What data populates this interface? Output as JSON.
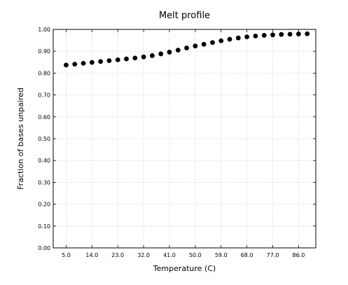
{
  "chart_data": {
    "type": "scatter",
    "title": "Melt profile",
    "xlabel": "Temperature (C)",
    "ylabel": "Fraction of bases unpaired",
    "xlim": [
      0.5,
      92.0
    ],
    "ylim": [
      0.0,
      1.0
    ],
    "x_ticks": [
      "5.0",
      "14.0",
      "23.0",
      "32.0",
      "41.0",
      "50.0",
      "59.0",
      "68.0",
      "77.0",
      "86.0"
    ],
    "y_ticks": [
      "0.00",
      "0.10",
      "0.20",
      "0.30",
      "0.40",
      "0.50",
      "0.60",
      "0.70",
      "0.80",
      "0.90",
      "1.00"
    ],
    "grid": true,
    "series": [
      {
        "color": "#000000",
        "x": [
          5,
          8,
          11,
          14,
          17,
          20,
          23,
          26,
          29,
          32,
          35,
          38,
          41,
          44,
          47,
          50,
          53,
          56,
          59,
          62,
          65,
          68,
          71,
          74,
          77,
          80,
          83,
          86,
          89
        ],
        "y": [
          0.837,
          0.841,
          0.845,
          0.849,
          0.853,
          0.857,
          0.861,
          0.865,
          0.869,
          0.874,
          0.88,
          0.888,
          0.896,
          0.905,
          0.915,
          0.924,
          0.932,
          0.94,
          0.948,
          0.955,
          0.961,
          0.966,
          0.97,
          0.973,
          0.975,
          0.977,
          0.978,
          0.979,
          0.98
        ]
      }
    ]
  }
}
